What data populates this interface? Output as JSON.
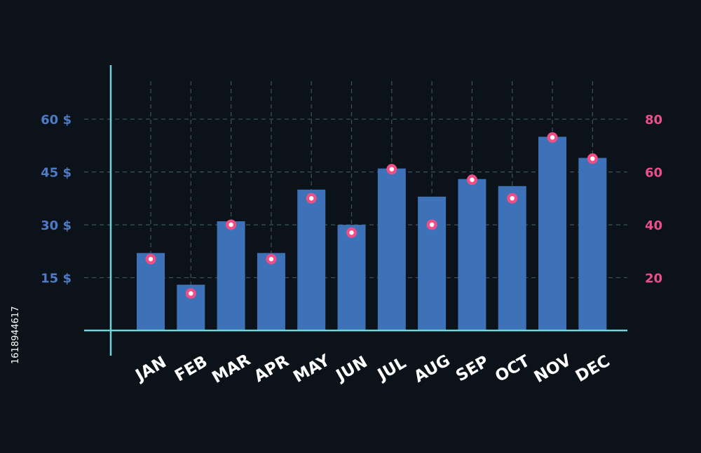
{
  "chart_data": {
    "type": "bar",
    "title": "",
    "xlabel": "",
    "ylabel": "",
    "categories": [
      "JAN",
      "FEB",
      "MAR",
      "APR",
      "MAY",
      "JUN",
      "JUL",
      "AUG",
      "SEP",
      "OCT",
      "NOV",
      "DEC"
    ],
    "series": [
      {
        "type": "bar",
        "axis": "left",
        "values": [
          22,
          13,
          31,
          22,
          40,
          30,
          46,
          38,
          43,
          41,
          55,
          49
        ]
      },
      {
        "type": "scatter",
        "axis": "right",
        "values": [
          27,
          14,
          40,
          27,
          50,
          37,
          61,
          40,
          57,
          50,
          73,
          65
        ]
      }
    ],
    "y_left": {
      "range": [
        0,
        70
      ],
      "ticks": [
        15,
        30,
        45,
        60
      ],
      "tick_labels": [
        "15 $",
        "30 $",
        "45 $",
        "60 $"
      ]
    },
    "y_right": {
      "range": [
        0,
        93.33
      ],
      "ticks": [
        20,
        40,
        60,
        80
      ],
      "tick_labels": [
        "20",
        "40",
        "60",
        "80"
      ]
    },
    "grid": true,
    "legend": "none",
    "colors": {
      "background": "#0b1219",
      "bar": "#3d72b9",
      "marker": "#ef4f86",
      "marker_center": "#ffffff",
      "axis": "#6fd4d8",
      "grid": "#3a5560",
      "left_tick": "#4d7bc6",
      "right_tick": "#ec4f8c",
      "x_tick": "#ffffff"
    }
  },
  "side_text": "1618944617"
}
